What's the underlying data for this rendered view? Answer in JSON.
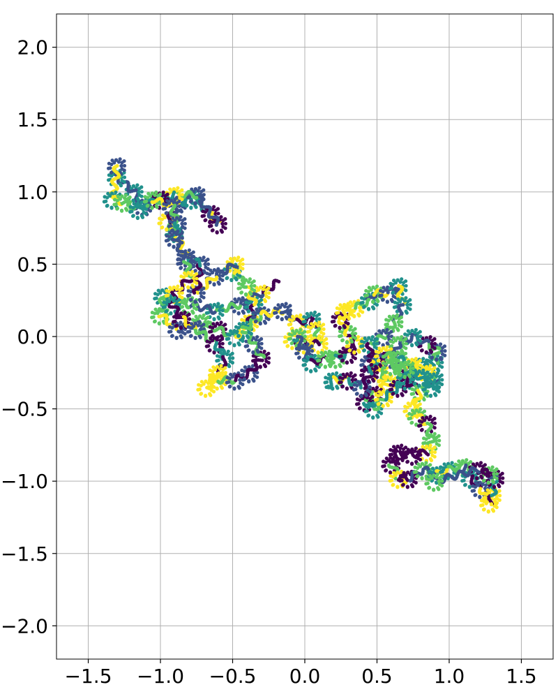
{
  "chart_data": {
    "type": "scatter",
    "title": "",
    "xlabel": "",
    "ylabel": "",
    "xlim": [
      -1.72,
      1.72
    ],
    "ylim": [
      -2.23,
      2.23
    ],
    "xticks": [
      -1.5,
      -1.0,
      -0.5,
      0.0,
      0.5,
      1.0,
      1.5
    ],
    "yticks": [
      -2.0,
      -1.5,
      -1.0,
      -0.5,
      0.0,
      0.5,
      1.0,
      1.5,
      2.0
    ],
    "xtick_labels": [
      "−1.5",
      "−1.0",
      "−0.5",
      "0.0",
      "0.5",
      "1.0",
      "1.5"
    ],
    "ytick_labels": [
      "−2.0",
      "−1.5",
      "−1.0",
      "−0.5",
      "0.0",
      "0.5",
      "1.0",
      "1.5",
      "2.0"
    ],
    "grid": true,
    "colormap": [
      "#440154",
      "#3b528b",
      "#21918c",
      "#5ec962",
      "#fde725"
    ],
    "description_of_marks": "dense trail of small circular markers along a symmetric random-walk path, colored along the path",
    "series": [
      {
        "values": [
          [
            -0.18,
            0.38
          ],
          [
            -0.3,
            0.3
          ],
          [
            -0.45,
            0.22
          ],
          [
            -0.62,
            0.18
          ],
          [
            -0.8,
            0.22
          ],
          [
            -0.98,
            0.28
          ],
          [
            -1.0,
            0.15
          ],
          [
            -0.88,
            0.05
          ],
          [
            -0.72,
            0.1
          ],
          [
            -0.6,
            0.05
          ],
          [
            -0.48,
            0.0
          ],
          [
            -0.38,
            0.1
          ],
          [
            -0.35,
            0.22
          ],
          [
            -0.4,
            0.35
          ],
          [
            -0.5,
            0.45
          ],
          [
            -0.48,
            0.5
          ],
          [
            -0.62,
            0.42
          ],
          [
            -0.75,
            0.3
          ],
          [
            -0.72,
            0.5
          ],
          [
            -0.82,
            0.55
          ],
          [
            -0.9,
            0.72
          ],
          [
            -0.95,
            0.8
          ],
          [
            -0.88,
            0.92
          ],
          [
            -0.78,
            0.95
          ],
          [
            -0.65,
            0.85
          ],
          [
            -0.6,
            0.78
          ],
          [
            -0.75,
            0.98
          ],
          [
            -0.9,
            0.98
          ],
          [
            -1.0,
            0.95
          ],
          [
            -1.12,
            0.9
          ],
          [
            -1.18,
            1.0
          ],
          [
            -1.3,
            1.1
          ],
          [
            -1.3,
            1.18
          ],
          [
            -1.33,
            0.95
          ],
          [
            -1.26,
            0.93
          ],
          [
            -1.15,
            0.88
          ],
          [
            -1.05,
            0.95
          ],
          [
            -0.92,
            0.9
          ],
          [
            -0.88,
            0.78
          ],
          [
            -0.9,
            0.68
          ],
          [
            -0.82,
            0.52
          ],
          [
            -0.8,
            0.4
          ],
          [
            -0.9,
            0.3
          ],
          [
            -0.92,
            0.22
          ],
          [
            -0.85,
            0.12
          ],
          [
            -0.75,
            0.05
          ],
          [
            -0.62,
            -0.05
          ],
          [
            -0.55,
            -0.15
          ],
          [
            -0.6,
            -0.25
          ],
          [
            -0.68,
            -0.35
          ],
          [
            -0.6,
            -0.3
          ],
          [
            -0.48,
            -0.3
          ],
          [
            -0.38,
            -0.25
          ],
          [
            -0.3,
            -0.15
          ],
          [
            -0.35,
            -0.05
          ],
          [
            -0.42,
            0.05
          ],
          [
            -0.3,
            0.15
          ],
          [
            -0.15,
            0.18
          ],
          [
            -0.05,
            0.1
          ],
          [
            0.05,
            0.12
          ],
          [
            0.08,
            0.05
          ],
          [
            0.1,
            -0.05
          ],
          [
            0.0,
            -0.05
          ],
          [
            -0.08,
            -0.02
          ],
          [
            -0.05,
            0.0
          ],
          [
            0.0,
            -0.1
          ],
          [
            0.05,
            -0.18
          ],
          [
            0.15,
            -0.15
          ],
          [
            0.22,
            -0.15
          ],
          [
            0.3,
            -0.12
          ],
          [
            0.35,
            -0.05
          ],
          [
            0.3,
            0.02
          ],
          [
            0.25,
            0.12
          ],
          [
            0.28,
            0.18
          ],
          [
            0.35,
            0.2
          ],
          [
            0.45,
            0.25
          ],
          [
            0.48,
            0.3
          ],
          [
            0.58,
            0.3
          ],
          [
            0.65,
            0.35
          ],
          [
            0.68,
            0.22
          ],
          [
            0.62,
            0.1
          ],
          [
            0.55,
            0.0
          ],
          [
            0.45,
            -0.05
          ],
          [
            0.45,
            -0.18
          ],
          [
            0.52,
            -0.25
          ],
          [
            0.58,
            -0.32
          ],
          [
            0.48,
            -0.4
          ],
          [
            0.42,
            -0.45
          ],
          [
            0.48,
            -0.5
          ],
          [
            0.55,
            -0.42
          ],
          [
            0.65,
            -0.35
          ],
          [
            0.72,
            -0.25
          ],
          [
            0.8,
            -0.2
          ],
          [
            0.9,
            -0.18
          ],
          [
            0.92,
            -0.1
          ],
          [
            0.85,
            -0.05
          ],
          [
            0.75,
            0.0
          ],
          [
            0.65,
            -0.05
          ],
          [
            0.6,
            -0.15
          ],
          [
            0.7,
            -0.3
          ],
          [
            0.8,
            -0.38
          ],
          [
            0.75,
            -0.5
          ],
          [
            0.78,
            -0.55
          ],
          [
            0.85,
            -0.6
          ],
          [
            0.88,
            -0.72
          ],
          [
            0.85,
            -0.8
          ],
          [
            0.75,
            -0.82
          ],
          [
            0.65,
            -0.8
          ],
          [
            0.6,
            -0.88
          ],
          [
            0.65,
            -0.98
          ],
          [
            0.72,
            -0.98
          ],
          [
            0.82,
            -0.92
          ],
          [
            0.92,
            -0.95
          ],
          [
            1.0,
            -0.92
          ],
          [
            1.1,
            -0.9
          ],
          [
            1.15,
            -0.98
          ],
          [
            1.22,
            -1.05
          ],
          [
            1.28,
            -1.15
          ],
          [
            1.3,
            -1.1
          ],
          [
            1.32,
            -0.98
          ],
          [
            1.28,
            -0.95
          ],
          [
            1.2,
            -0.92
          ],
          [
            0.9,
            -1.0
          ]
        ]
      },
      {
        "values": [
          [
            0.15,
            -0.35
          ],
          [
            0.2,
            -0.3
          ],
          [
            0.3,
            -0.3
          ],
          [
            0.4,
            -0.35
          ],
          [
            0.45,
            -0.25
          ],
          [
            0.5,
            -0.15
          ],
          [
            0.55,
            -0.12
          ],
          [
            0.65,
            -0.15
          ],
          [
            0.75,
            -0.2
          ],
          [
            0.85,
            -0.25
          ],
          [
            0.9,
            -0.3
          ],
          [
            0.88,
            -0.35
          ],
          [
            0.8,
            -0.28
          ],
          [
            0.7,
            -0.22
          ],
          [
            0.6,
            -0.2
          ]
        ]
      }
    ]
  }
}
